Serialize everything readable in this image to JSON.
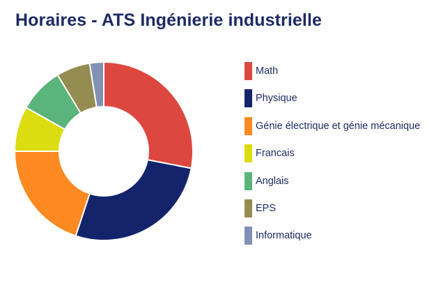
{
  "chart_data": {
    "type": "pie",
    "variant": "donut",
    "title": "Horaires - ATS Ingénierie industrielle",
    "categories": [
      "Math",
      "Physique",
      "Génie électrique et génie mécanique",
      "Francais",
      "Anglais",
      "EPS",
      "Informatique"
    ],
    "values": [
      27.5,
      26.5,
      19.5,
      8,
      8,
      6,
      2.5
    ],
    "unit": "percent (approx.)",
    "colors": [
      "#dc4840",
      "#14246b",
      "#fe8a21",
      "#dcdd10",
      "#5bb47a",
      "#958c52",
      "#8390b4"
    ],
    "legend_position": "right"
  }
}
